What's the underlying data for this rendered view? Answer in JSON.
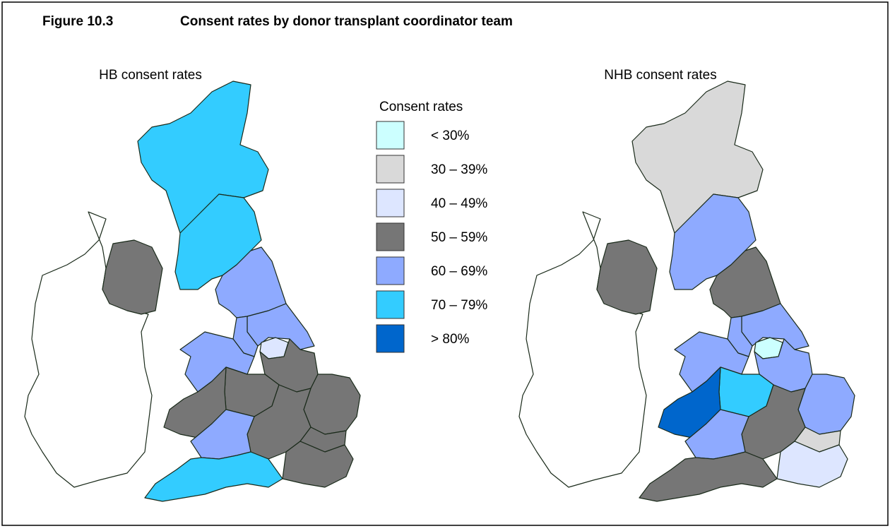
{
  "header": {
    "figure": "Figure 10.3",
    "title": "Consent rates by donor transplant coordinator team"
  },
  "maps": [
    {
      "title": "HB consent rates"
    },
    {
      "title": "NHB consent rates"
    }
  ],
  "legend": {
    "title": "Consent rates",
    "items": [
      {
        "label": "< 30%",
        "color": "#ccffff"
      },
      {
        "label": "30 – 39%",
        "color": "#d9d9d9"
      },
      {
        "label": "40 – 49%",
        "color": "#dde6ff"
      },
      {
        "label": "50 – 59%",
        "color": "#767676"
      },
      {
        "label": "60 – 69%",
        "color": "#8eaaff"
      },
      {
        "label": "70 – 79%",
        "color": "#33ccff"
      },
      {
        "label": "> 80%",
        "color": "#0066cc"
      }
    ]
  }
}
